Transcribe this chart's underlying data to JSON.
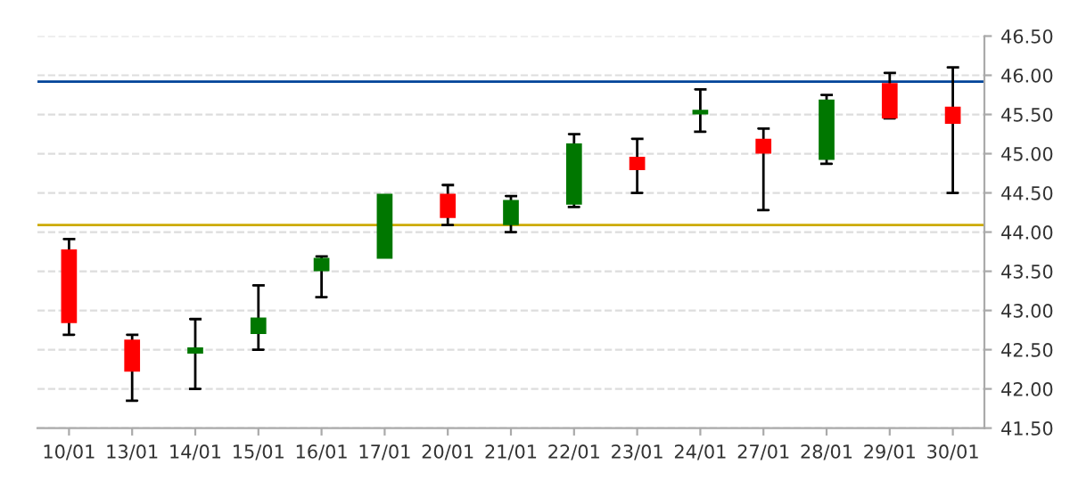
{
  "chart_data": {
    "type": "candlestick",
    "categories": [
      "10/01",
      "13/01",
      "14/01",
      "15/01",
      "16/01",
      "17/01",
      "20/01",
      "21/01",
      "22/01",
      "23/01",
      "24/01",
      "27/01",
      "28/01",
      "29/01",
      "30/01"
    ],
    "ohlc": [
      [
        43.78,
        43.91,
        42.69,
        42.84
      ],
      [
        42.63,
        42.69,
        41.85,
        42.22
      ],
      [
        42.45,
        42.89,
        42.0,
        42.53
      ],
      [
        42.7,
        43.32,
        42.5,
        42.91
      ],
      [
        43.5,
        43.69,
        43.17,
        43.67
      ],
      [
        43.66,
        44.49,
        43.66,
        44.49
      ],
      [
        44.49,
        44.6,
        44.09,
        44.18
      ],
      [
        44.09,
        44.46,
        44.0,
        44.41
      ],
      [
        44.35,
        45.25,
        44.32,
        45.13
      ],
      [
        44.96,
        45.19,
        44.5,
        44.79
      ],
      [
        45.5,
        45.82,
        45.28,
        45.56
      ],
      [
        45.19,
        45.32,
        44.28,
        45.0
      ],
      [
        44.92,
        45.75,
        44.87,
        45.69
      ],
      [
        45.9,
        46.03,
        45.45,
        45.45
      ],
      [
        45.6,
        46.1,
        44.5,
        45.38
      ]
    ],
    "colors": [
      "#ff0000",
      "#ff0000",
      "#007700",
      "#007700",
      "#007700",
      "#007700",
      "#ff0000",
      "#007700",
      "#007700",
      "#ff0000",
      "#007700",
      "#ff0000",
      "#007700",
      "#ff0000",
      "#ff0000"
    ],
    "ylim": [
      41.5,
      46.5
    ],
    "yticks": [
      {
        "value": 41.5,
        "label": "41.50"
      },
      {
        "value": 42,
        "label": "42.00"
      },
      {
        "value": 42.5,
        "label": "42.50"
      },
      {
        "value": 43,
        "label": "43.00"
      },
      {
        "value": 43.5,
        "label": "43.50"
      },
      {
        "value": 44,
        "label": "44.00"
      },
      {
        "value": 44.5,
        "label": "44.50"
      },
      {
        "value": 45,
        "label": "45.00"
      },
      {
        "value": 45.5,
        "label": "45.50"
      },
      {
        "value": 46,
        "label": "46.00"
      },
      {
        "value": 46.5,
        "label": "46.50"
      }
    ],
    "ref_lines": [
      {
        "axis": "y",
        "value": 45.92,
        "label": null,
        "color": "#004499"
      },
      {
        "axis": "y",
        "value": 44.09,
        "label": null,
        "color": "#ccaa00"
      }
    ],
    "grid": "y"
  }
}
